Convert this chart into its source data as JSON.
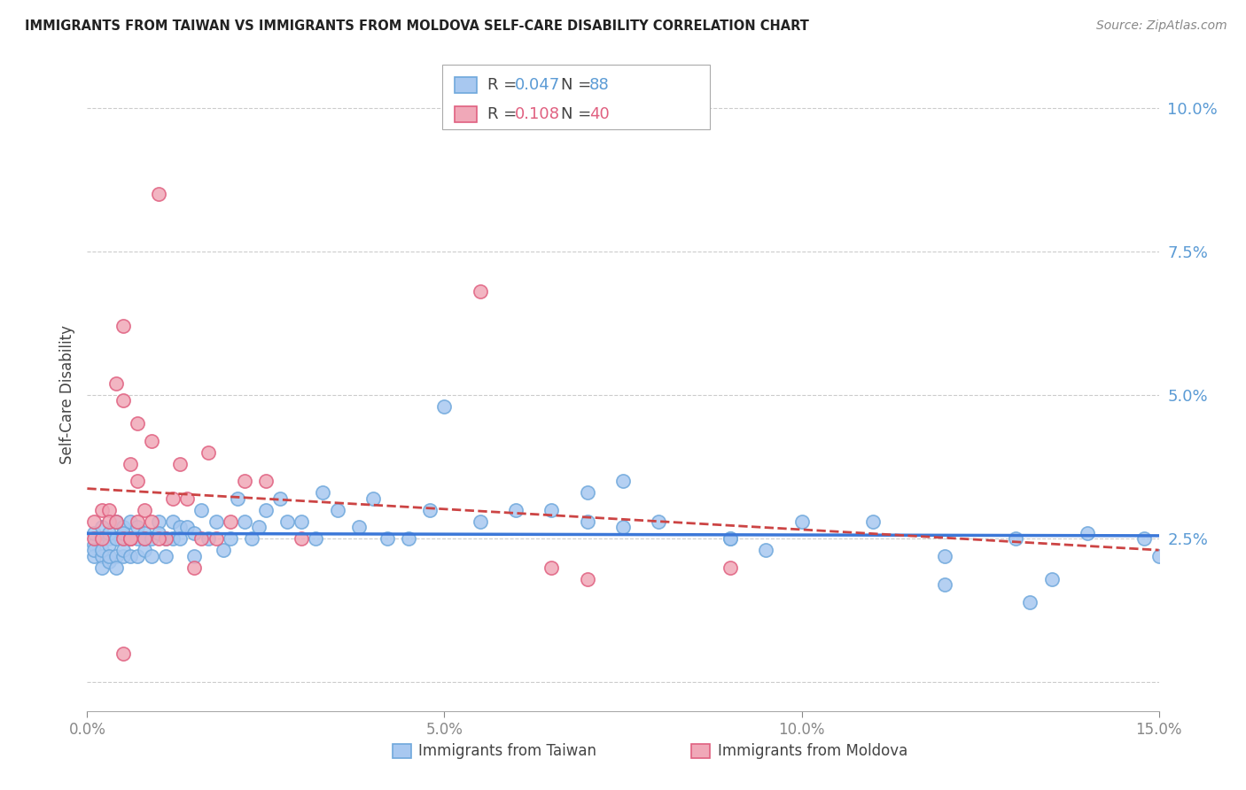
{
  "title": "IMMIGRANTS FROM TAIWAN VS IMMIGRANTS FROM MOLDOVA SELF-CARE DISABILITY CORRELATION CHART",
  "source": "Source: ZipAtlas.com",
  "ylabel": "Self-Care Disability",
  "xlim": [
    0.0,
    0.15
  ],
  "ylim": [
    -0.005,
    0.105
  ],
  "yticks": [
    0.0,
    0.025,
    0.05,
    0.075,
    0.1
  ],
  "ytick_labels": [
    "",
    "2.5%",
    "5.0%",
    "7.5%",
    "10.0%"
  ],
  "xticks": [
    0.0,
    0.05,
    0.1,
    0.15
  ],
  "xtick_labels": [
    "0.0%",
    "5.0%",
    "10.0%",
    "15.0%"
  ],
  "taiwan_color": "#a8c8f0",
  "moldova_color": "#f0a8b8",
  "taiwan_edge_color": "#6fa8dc",
  "moldova_edge_color": "#e06080",
  "taiwan_R": 0.047,
  "taiwan_N": 88,
  "moldova_R": 0.108,
  "moldova_N": 40,
  "taiwan_line_color": "#3c78d8",
  "moldova_line_color": "#cc4444",
  "background_color": "#ffffff",
  "grid_color": "#cccccc",
  "taiwan_x": [
    0.001,
    0.001,
    0.001,
    0.001,
    0.002,
    0.002,
    0.002,
    0.002,
    0.002,
    0.003,
    0.003,
    0.003,
    0.003,
    0.003,
    0.004,
    0.004,
    0.004,
    0.004,
    0.005,
    0.005,
    0.005,
    0.005,
    0.005,
    0.006,
    0.006,
    0.006,
    0.007,
    0.007,
    0.007,
    0.008,
    0.008,
    0.008,
    0.009,
    0.009,
    0.01,
    0.01,
    0.011,
    0.011,
    0.012,
    0.012,
    0.013,
    0.013,
    0.014,
    0.015,
    0.015,
    0.016,
    0.017,
    0.018,
    0.019,
    0.02,
    0.021,
    0.022,
    0.023,
    0.024,
    0.025,
    0.027,
    0.028,
    0.03,
    0.032,
    0.033,
    0.035,
    0.038,
    0.04,
    0.042,
    0.045,
    0.048,
    0.05,
    0.055,
    0.06,
    0.065,
    0.07,
    0.075,
    0.08,
    0.09,
    0.1,
    0.11,
    0.12,
    0.13,
    0.14,
    0.148,
    0.15,
    0.12,
    0.132,
    0.135,
    0.09,
    0.095,
    0.07,
    0.075
  ],
  "taiwan_y": [
    0.024,
    0.022,
    0.023,
    0.026,
    0.025,
    0.022,
    0.027,
    0.023,
    0.02,
    0.025,
    0.021,
    0.024,
    0.022,
    0.026,
    0.025,
    0.022,
    0.028,
    0.02,
    0.025,
    0.022,
    0.027,
    0.023,
    0.026,
    0.025,
    0.022,
    0.028,
    0.025,
    0.022,
    0.027,
    0.026,
    0.023,
    0.025,
    0.025,
    0.022,
    0.028,
    0.026,
    0.025,
    0.022,
    0.028,
    0.025,
    0.027,
    0.025,
    0.027,
    0.026,
    0.022,
    0.03,
    0.025,
    0.028,
    0.023,
    0.025,
    0.032,
    0.028,
    0.025,
    0.027,
    0.03,
    0.032,
    0.028,
    0.028,
    0.025,
    0.033,
    0.03,
    0.027,
    0.032,
    0.025,
    0.025,
    0.03,
    0.048,
    0.028,
    0.03,
    0.03,
    0.028,
    0.035,
    0.028,
    0.025,
    0.028,
    0.028,
    0.017,
    0.025,
    0.026,
    0.025,
    0.022,
    0.022,
    0.014,
    0.018,
    0.025,
    0.023,
    0.033,
    0.027
  ],
  "moldova_x": [
    0.001,
    0.001,
    0.002,
    0.002,
    0.003,
    0.003,
    0.004,
    0.004,
    0.005,
    0.005,
    0.005,
    0.006,
    0.006,
    0.007,
    0.007,
    0.008,
    0.009,
    0.01,
    0.011,
    0.012,
    0.013,
    0.014,
    0.015,
    0.016,
    0.017,
    0.018,
    0.02,
    0.022,
    0.025,
    0.03,
    0.055,
    0.065,
    0.07,
    0.09,
    0.01,
    0.005,
    0.006,
    0.007,
    0.008,
    0.009
  ],
  "moldova_y": [
    0.025,
    0.028,
    0.025,
    0.03,
    0.03,
    0.028,
    0.028,
    0.052,
    0.049,
    0.062,
    0.025,
    0.038,
    0.025,
    0.045,
    0.035,
    0.03,
    0.042,
    0.085,
    0.025,
    0.032,
    0.038,
    0.032,
    0.02,
    0.025,
    0.04,
    0.025,
    0.028,
    0.035,
    0.035,
    0.025,
    0.068,
    0.02,
    0.018,
    0.02,
    0.025,
    0.005,
    0.025,
    0.028,
    0.025,
    0.028
  ]
}
